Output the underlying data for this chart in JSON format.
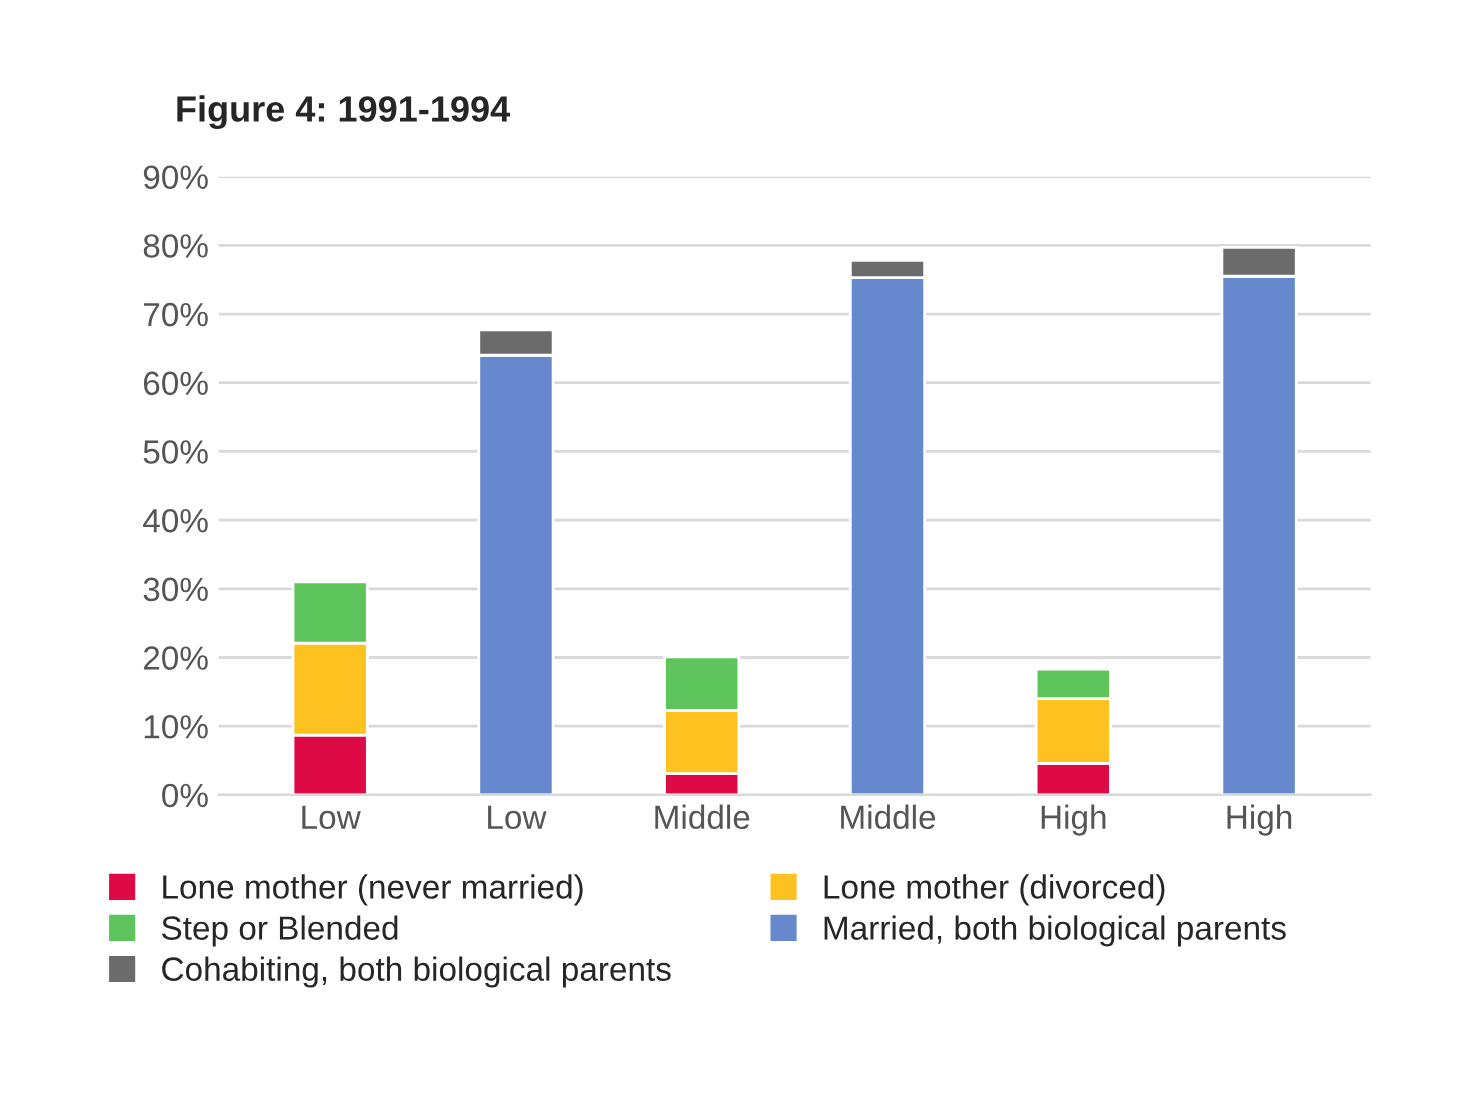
{
  "chart_data": {
    "type": "bar",
    "title": "Figure 4: 1991-1994",
    "stacked": true,
    "categories": [
      "Low",
      "Low",
      "Middle",
      "Middle",
      "High",
      "High"
    ],
    "series": [
      {
        "name": "Lone mother (never married)",
        "color": "#de0a45",
        "values": [
          8.7,
          null,
          3.1,
          null,
          4.6,
          null
        ]
      },
      {
        "name": "Lone mother (divorced)",
        "color": "#fdc220",
        "values": [
          13.4,
          null,
          9.2,
          null,
          9.4,
          null
        ]
      },
      {
        "name": "Step or Blended",
        "color": "#5ec45c",
        "values": [
          8.9,
          null,
          7.8,
          null,
          4.3,
          null
        ]
      },
      {
        "name": "Married, both biological parents",
        "color": "#6688cc",
        "values": [
          null,
          64.0,
          null,
          75.3,
          null,
          75.5
        ]
      },
      {
        "name": "Cohabiting, both biological parents",
        "color": "#6b6b6b",
        "values": [
          null,
          3.7,
          null,
          2.5,
          null,
          4.2
        ]
      }
    ],
    "ylim": [
      0,
      90
    ],
    "yticks": [
      {
        "value": 0,
        "label": "0%"
      },
      {
        "value": 10,
        "label": "10%"
      },
      {
        "value": 20,
        "label": "20%"
      },
      {
        "value": 30,
        "label": "30%"
      },
      {
        "value": 40,
        "label": "40%"
      },
      {
        "value": 50,
        "label": "50%"
      },
      {
        "value": 60,
        "label": "60%"
      },
      {
        "value": 70,
        "label": "70%"
      },
      {
        "value": 80,
        "label": "80%"
      },
      {
        "value": 90,
        "label": "90%"
      }
    ],
    "grid": "y",
    "legend": "bottom"
  }
}
